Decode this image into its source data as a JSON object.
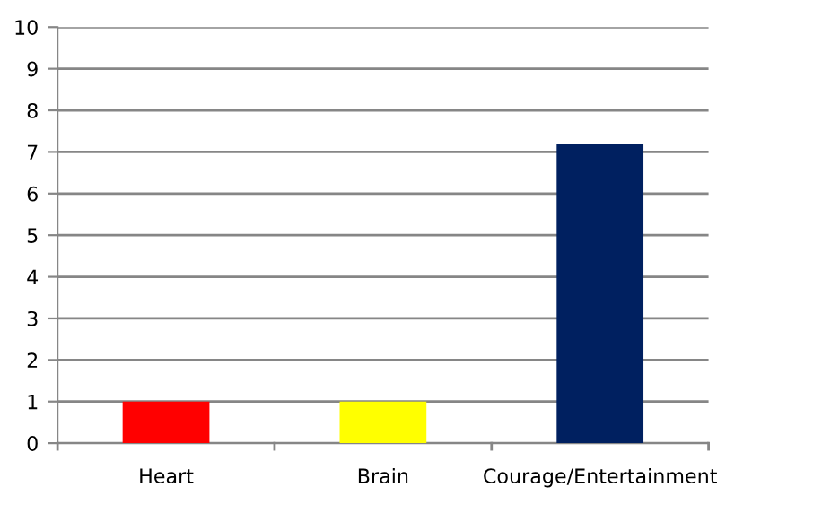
{
  "chart_data": {
    "type": "bar",
    "categories": [
      "Heart",
      "Brain",
      "Courage/Entertainment"
    ],
    "values": [
      1,
      1,
      7.2
    ],
    "colors": [
      "#ff0000",
      "#ffff00",
      "#002060"
    ],
    "ylim": [
      0,
      10
    ],
    "yticks": [
      0,
      1,
      2,
      3,
      4,
      5,
      6,
      7,
      8,
      9,
      10
    ],
    "grid": "y"
  }
}
